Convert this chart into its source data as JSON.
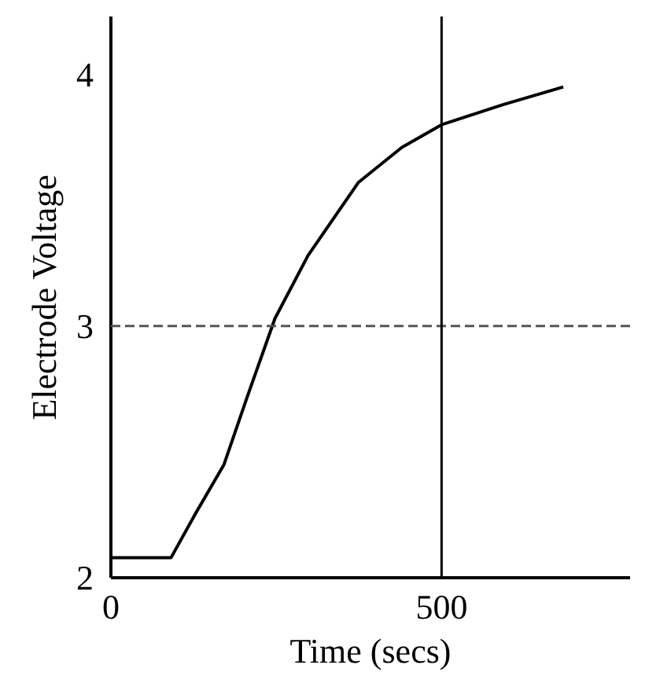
{
  "chart_data": {
    "type": "line",
    "xlabel": "Time (secs)",
    "ylabel": "Electrode Voltage",
    "x": [
      0,
      91,
      129,
      171,
      205,
      248,
      298,
      374,
      440,
      500,
      593,
      684
    ],
    "series": [
      {
        "color": "#000000",
        "values": [
          2.08,
          2.08,
          2.26,
          2.45,
          2.71,
          3.03,
          3.28,
          3.57,
          3.71,
          3.8,
          3.88,
          3.95
        ]
      }
    ],
    "xlim": [
      0,
      785
    ],
    "ylim": [
      2,
      4.23
    ],
    "xticks": [
      0,
      500
    ],
    "yticks": [
      2,
      3,
      4
    ],
    "ref_lines": [
      {
        "axis": "y",
        "value": 3,
        "line_style": "dashed",
        "color": "#555555"
      },
      {
        "axis": "x",
        "value": 500,
        "line_style": "solid",
        "color": "#000000"
      }
    ],
    "grid": false,
    "marker": "none",
    "line_style": "solid"
  }
}
